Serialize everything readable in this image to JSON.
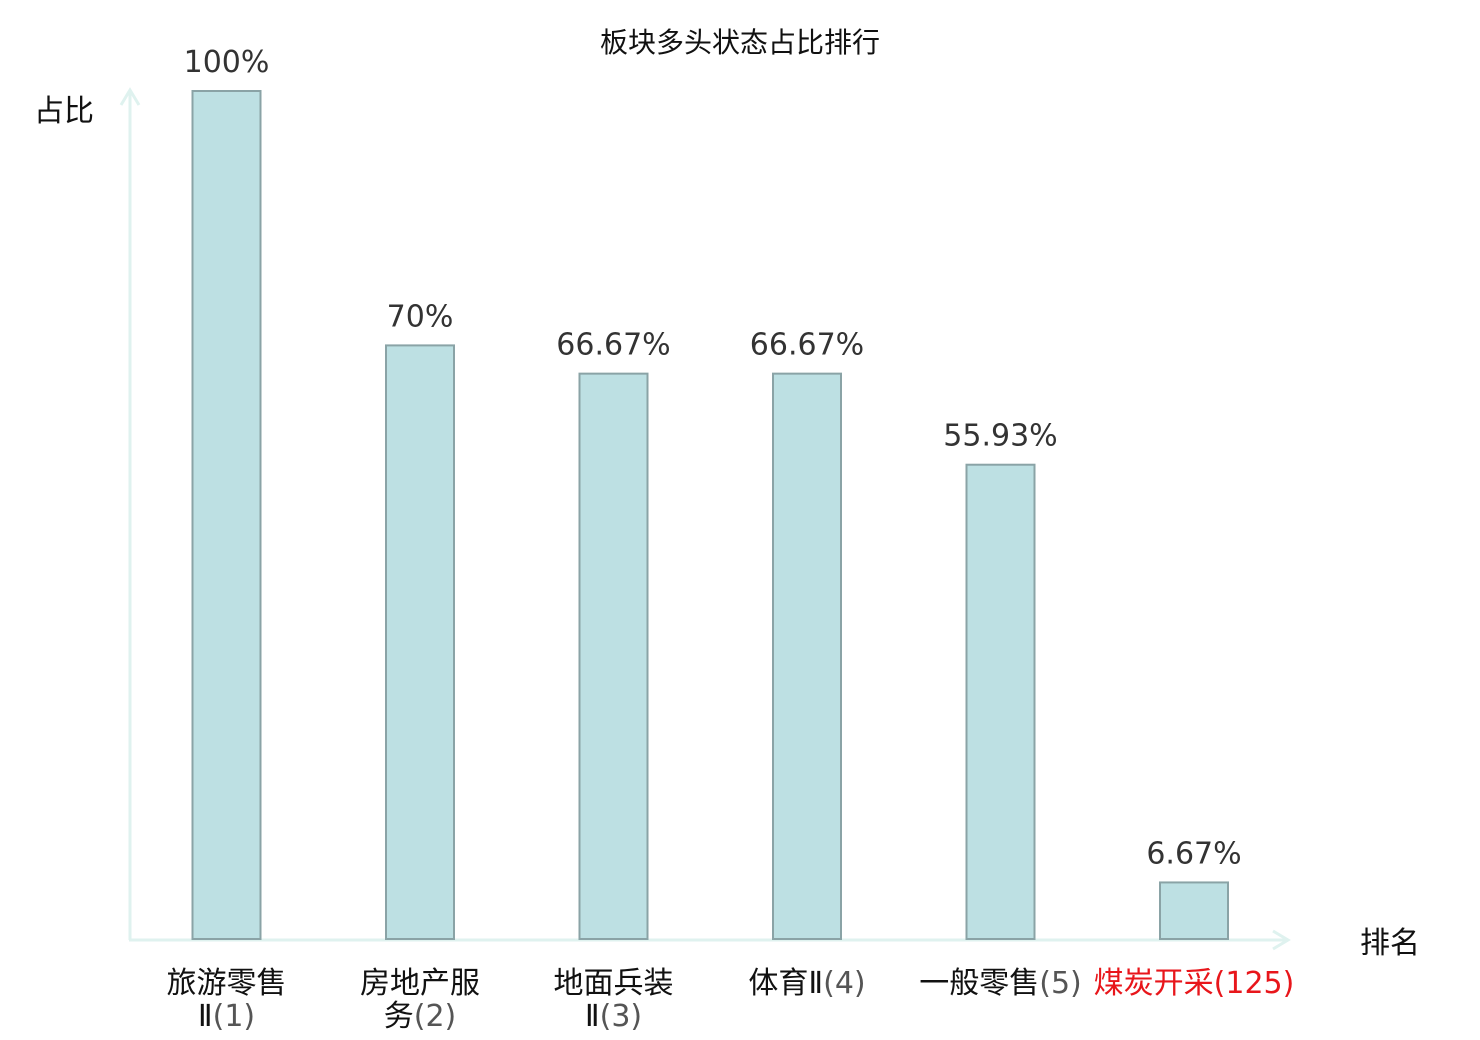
{
  "chart_data": {
    "type": "bar",
    "title": "板块多头状态占比排行",
    "ylabel": "占比",
    "xlabel": "排名",
    "ylim": [
      0,
      100
    ],
    "grid": false,
    "colors": {
      "bar_fill": "#bde0e3",
      "bar_stroke": "#8aa3a6",
      "axis": "#dff2ef",
      "highlight": "#e8161b"
    },
    "categories": [
      {
        "name_lines": [
          "旅游零售",
          "Ⅱ"
        ],
        "rank": "(1)",
        "highlight": false
      },
      {
        "name_lines": [
          "房地产服",
          "务"
        ],
        "rank": "(2)",
        "highlight": false
      },
      {
        "name_lines": [
          "地面兵装",
          "Ⅱ"
        ],
        "rank": "(3)",
        "highlight": false
      },
      {
        "name_lines": [
          "体育Ⅱ"
        ],
        "rank": "(4)",
        "highlight": false
      },
      {
        "name_lines": [
          "一般零售"
        ],
        "rank": "(5)",
        "highlight": false
      },
      {
        "name_lines": [
          "煤炭开采"
        ],
        "rank": "(125)",
        "highlight": true
      }
    ],
    "values": [
      100,
      70,
      66.67,
      66.67,
      55.93,
      6.67
    ],
    "value_labels": [
      "100%",
      "70%",
      "66.67%",
      "66.67%",
      "55.93%",
      "6.67%"
    ]
  }
}
